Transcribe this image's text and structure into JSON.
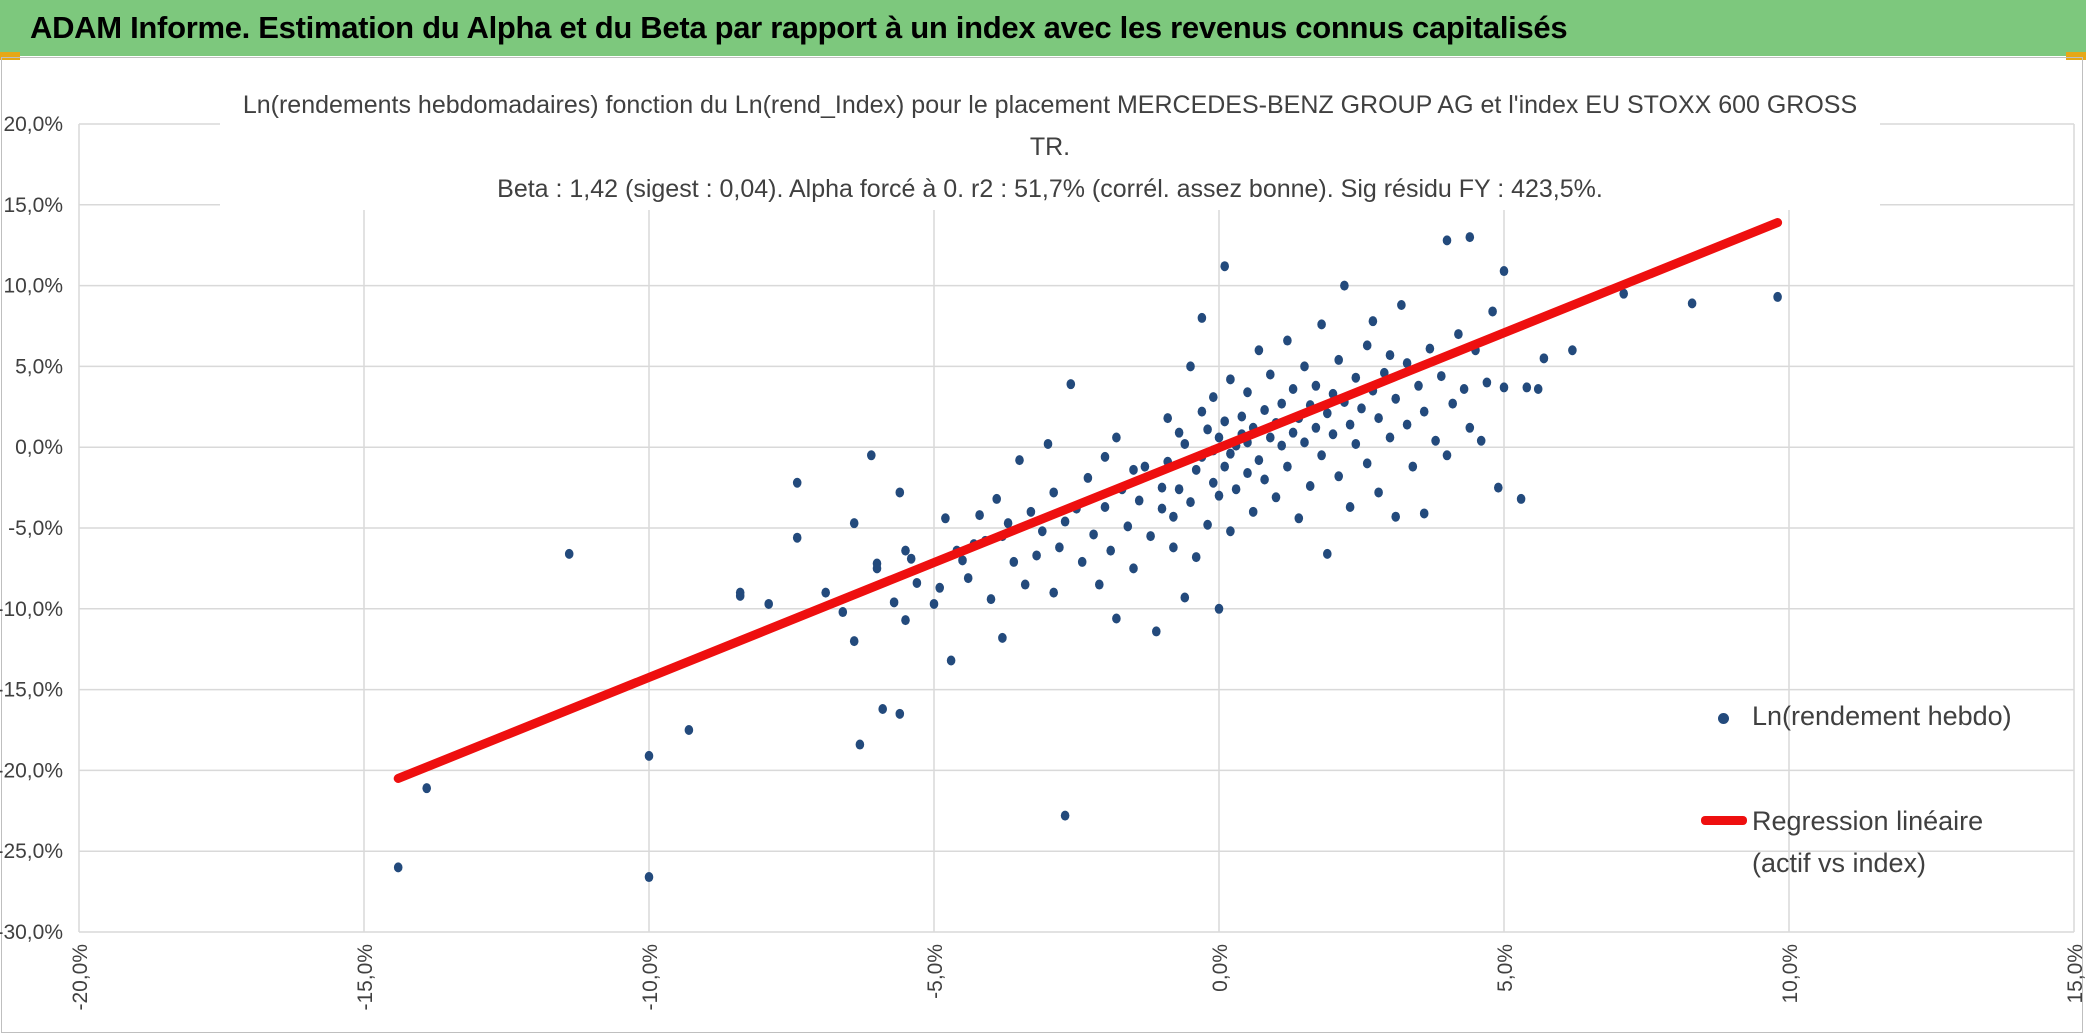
{
  "header": {
    "title": "ADAM Informe. Estimation du Alpha et du Beta par rapport à un index avec les revenus connus capitalisés"
  },
  "colors": {
    "header_bg": "#7dc87d",
    "points": "#234a7c",
    "regression": "#ee0f0f",
    "grid": "#d9d9d9"
  },
  "chart_data": {
    "type": "scatter",
    "title": "Ln(rendements hebdomadaires) fonction du Ln(rend_Index) pour le placement MERCEDES-BENZ GROUP AG et l'index EU STOXX 600 GROSS TR.",
    "subtitle": "Beta : 1,42 (sigest : 0,04). Alpha forcé à 0. r2 : 51,7% (corrél. assez bonne). Sig résidu FY : 423,5%.",
    "xlabel": "",
    "ylabel": "",
    "xlim": [
      -0.2,
      0.15
    ],
    "ylim": [
      -0.3,
      0.2
    ],
    "x_ticks": [
      "-20,0%",
      "-15,0%",
      "-10,0%",
      "-5,0%",
      "0,0%",
      "5,0%",
      "10,0%",
      "15,0%"
    ],
    "y_ticks": [
      "20,0%",
      "15,0%",
      "10,0%",
      "5,0%",
      "0,0%",
      "-5,0%",
      "-10,0%",
      "-15,0%",
      "-20,0%",
      "-25,0%",
      "-30,0%"
    ],
    "grid": true,
    "legend_position": "right",
    "series": [
      {
        "name": "Ln(rendement hebdo)",
        "type": "scatter",
        "points": [
          [
            -0.144,
            -0.26
          ],
          [
            -0.139,
            -0.211
          ],
          [
            -0.114,
            -0.066
          ],
          [
            -0.1,
            -0.266
          ],
          [
            -0.1,
            -0.191
          ],
          [
            -0.093,
            -0.175
          ],
          [
            -0.084,
            -0.09
          ],
          [
            -0.084,
            -0.092
          ],
          [
            -0.079,
            -0.097
          ],
          [
            -0.074,
            -0.022
          ],
          [
            -0.074,
            -0.056
          ],
          [
            -0.069,
            -0.09
          ],
          [
            -0.066,
            -0.102
          ],
          [
            -0.064,
            -0.047
          ],
          [
            -0.064,
            -0.12
          ],
          [
            -0.063,
            -0.184
          ],
          [
            -0.061,
            -0.005
          ],
          [
            -0.06,
            -0.072
          ],
          [
            -0.06,
            -0.075
          ],
          [
            -0.059,
            -0.162
          ],
          [
            -0.057,
            -0.096
          ],
          [
            -0.056,
            -0.028
          ],
          [
            -0.056,
            -0.165
          ],
          [
            -0.055,
            -0.107
          ],
          [
            -0.055,
            -0.064
          ],
          [
            -0.054,
            -0.069
          ],
          [
            -0.053,
            -0.084
          ],
          [
            -0.05,
            -0.097
          ],
          [
            -0.049,
            -0.087
          ],
          [
            -0.048,
            -0.044
          ],
          [
            -0.047,
            -0.132
          ],
          [
            -0.046,
            -0.064
          ],
          [
            -0.045,
            -0.07
          ],
          [
            -0.044,
            -0.081
          ],
          [
            -0.043,
            -0.06
          ],
          [
            -0.042,
            -0.042
          ],
          [
            -0.041,
            -0.058
          ],
          [
            -0.04,
            -0.094
          ],
          [
            -0.039,
            -0.032
          ],
          [
            -0.038,
            -0.055
          ],
          [
            -0.038,
            -0.118
          ],
          [
            -0.037,
            -0.047
          ],
          [
            -0.036,
            -0.071
          ],
          [
            -0.035,
            -0.008
          ],
          [
            -0.034,
            -0.085
          ],
          [
            -0.033,
            -0.04
          ],
          [
            -0.032,
            -0.067
          ],
          [
            -0.031,
            -0.052
          ],
          [
            -0.03,
            0.002
          ],
          [
            -0.029,
            -0.028
          ],
          [
            -0.029,
            -0.09
          ],
          [
            -0.028,
            -0.062
          ],
          [
            -0.027,
            -0.228
          ],
          [
            -0.027,
            -0.046
          ],
          [
            -0.026,
            0.039
          ],
          [
            -0.025,
            -0.038
          ],
          [
            -0.024,
            -0.071
          ],
          [
            -0.023,
            -0.019
          ],
          [
            -0.022,
            -0.054
          ],
          [
            -0.021,
            -0.085
          ],
          [
            -0.02,
            -0.006
          ],
          [
            -0.02,
            -0.037
          ],
          [
            -0.019,
            -0.064
          ],
          [
            -0.018,
            0.006
          ],
          [
            -0.018,
            -0.106
          ],
          [
            -0.017,
            -0.026
          ],
          [
            -0.016,
            -0.049
          ],
          [
            -0.015,
            -0.014
          ],
          [
            -0.015,
            -0.075
          ],
          [
            -0.014,
            -0.033
          ],
          [
            -0.013,
            -0.012
          ],
          [
            -0.012,
            -0.055
          ],
          [
            -0.011,
            -0.114
          ],
          [
            -0.01,
            -0.025
          ],
          [
            -0.01,
            -0.038
          ],
          [
            -0.009,
            0.018
          ],
          [
            -0.009,
            -0.009
          ],
          [
            -0.008,
            -0.062
          ],
          [
            -0.008,
            -0.043
          ],
          [
            -0.007,
            0.009
          ],
          [
            -0.007,
            -0.026
          ],
          [
            -0.006,
            -0.093
          ],
          [
            -0.006,
            0.002
          ],
          [
            -0.005,
            -0.034
          ],
          [
            -0.005,
            0.05
          ],
          [
            -0.004,
            -0.014
          ],
          [
            -0.004,
            -0.068
          ],
          [
            -0.003,
            0.022
          ],
          [
            -0.003,
            -0.006
          ],
          [
            -0.003,
            0.08
          ],
          [
            -0.002,
            -0.048
          ],
          [
            -0.002,
            0.011
          ],
          [
            -0.001,
            -0.022
          ],
          [
            -0.001,
            -0.002
          ],
          [
            -0.001,
            0.031
          ],
          [
            0.0,
            -0.03
          ],
          [
            0.0,
            0.006
          ],
          [
            0.0,
            -0.1
          ],
          [
            0.001,
            0.016
          ],
          [
            0.001,
            -0.012
          ],
          [
            0.001,
            0.112
          ],
          [
            0.002,
            -0.004
          ],
          [
            0.002,
            0.042
          ],
          [
            0.002,
            -0.052
          ],
          [
            0.003,
            0.001
          ],
          [
            0.003,
            -0.026
          ],
          [
            0.004,
            0.019
          ],
          [
            0.004,
            0.008
          ],
          [
            0.005,
            -0.016
          ],
          [
            0.005,
            0.034
          ],
          [
            0.005,
            0.003
          ],
          [
            0.006,
            -0.04
          ],
          [
            0.006,
            0.012
          ],
          [
            0.007,
            0.06
          ],
          [
            0.007,
            -0.008
          ],
          [
            0.008,
            0.023
          ],
          [
            0.008,
            -0.02
          ],
          [
            0.009,
            0.006
          ],
          [
            0.009,
            0.045
          ],
          [
            0.01,
            -0.031
          ],
          [
            0.01,
            0.015
          ],
          [
            0.011,
            0.001
          ],
          [
            0.011,
            0.027
          ],
          [
            0.012,
            -0.012
          ],
          [
            0.012,
            0.066
          ],
          [
            0.013,
            0.009
          ],
          [
            0.013,
            0.036
          ],
          [
            0.014,
            -0.044
          ],
          [
            0.014,
            0.018
          ],
          [
            0.015,
            0.003
          ],
          [
            0.015,
            0.05
          ],
          [
            0.016,
            0.026
          ],
          [
            0.016,
            -0.024
          ],
          [
            0.017,
            0.012
          ],
          [
            0.017,
            0.038
          ],
          [
            0.018,
            0.076
          ],
          [
            0.018,
            -0.005
          ],
          [
            0.019,
            0.021
          ],
          [
            0.019,
            -0.066
          ],
          [
            0.02,
            0.033
          ],
          [
            0.02,
            0.008
          ],
          [
            0.021,
            0.054
          ],
          [
            0.021,
            -0.018
          ],
          [
            0.022,
            0.028
          ],
          [
            0.022,
            0.1
          ],
          [
            0.023,
            0.014
          ],
          [
            0.023,
            -0.037
          ],
          [
            0.024,
            0.043
          ],
          [
            0.024,
            0.002
          ],
          [
            0.025,
            0.024
          ],
          [
            0.026,
            0.063
          ],
          [
            0.026,
            -0.01
          ],
          [
            0.027,
            0.035
          ],
          [
            0.027,
            0.078
          ],
          [
            0.028,
            0.018
          ],
          [
            0.028,
            -0.028
          ],
          [
            0.029,
            0.046
          ],
          [
            0.03,
            0.006
          ],
          [
            0.03,
            0.057
          ],
          [
            0.031,
            -0.043
          ],
          [
            0.031,
            0.03
          ],
          [
            0.032,
            0.088
          ],
          [
            0.033,
            0.014
          ],
          [
            0.033,
            0.052
          ],
          [
            0.034,
            -0.012
          ],
          [
            0.035,
            0.038
          ],
          [
            0.035,
            0.161
          ],
          [
            0.036,
            0.022
          ],
          [
            0.036,
            -0.041
          ],
          [
            0.037,
            0.061
          ],
          [
            0.038,
            0.004
          ],
          [
            0.039,
            0.044
          ],
          [
            0.04,
            0.128
          ],
          [
            0.04,
            -0.005
          ],
          [
            0.041,
            0.027
          ],
          [
            0.042,
            0.07
          ],
          [
            0.043,
            0.036
          ],
          [
            0.044,
            0.012
          ],
          [
            0.044,
            0.13
          ],
          [
            0.045,
            0.06
          ],
          [
            0.046,
            0.004
          ],
          [
            0.047,
            0.04
          ],
          [
            0.048,
            0.084
          ],
          [
            0.049,
            -0.025
          ],
          [
            0.05,
            0.109
          ],
          [
            0.05,
            0.037
          ],
          [
            0.053,
            -0.032
          ],
          [
            0.054,
            0.037
          ],
          [
            0.056,
            0.036
          ],
          [
            0.057,
            0.055
          ],
          [
            0.062,
            0.06
          ],
          [
            0.071,
            0.095
          ],
          [
            0.078,
            0.15
          ],
          [
            0.083,
            0.089
          ],
          [
            0.098,
            0.093
          ]
        ]
      },
      {
        "name": "Regression linéaire\n(actif vs index)",
        "type": "line",
        "points": [
          [
            -0.144,
            -0.205
          ],
          [
            0.098,
            0.139
          ]
        ]
      }
    ]
  }
}
